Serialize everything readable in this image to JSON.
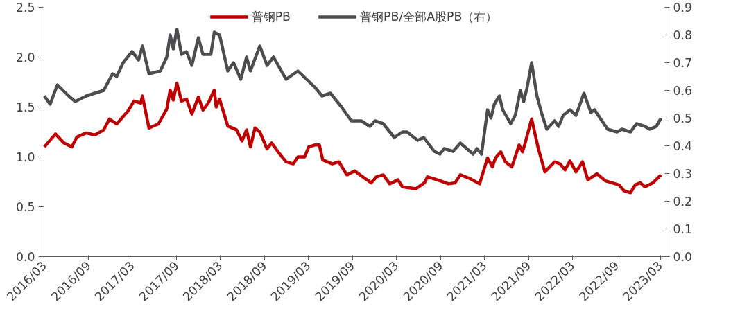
{
  "chart_data": {
    "type": "line",
    "legend": "top",
    "grid": false,
    "line_style": "solid",
    "marker": "none",
    "xlim": [
      "2016-02-20",
      "2023-03-25"
    ],
    "xticks": [
      {
        "value": "2016-03-01",
        "label": "2016/03"
      },
      {
        "value": "2016-09-01",
        "label": "2016/09"
      },
      {
        "value": "2017-03-01",
        "label": "2017/03"
      },
      {
        "value": "2017-09-01",
        "label": "2017/09"
      },
      {
        "value": "2018-03-01",
        "label": "2018/03"
      },
      {
        "value": "2018-09-01",
        "label": "2018/09"
      },
      {
        "value": "2019-03-01",
        "label": "2019/03"
      },
      {
        "value": "2019-09-01",
        "label": "2019/09"
      },
      {
        "value": "2020-03-01",
        "label": "2020/03"
      },
      {
        "value": "2020-09-01",
        "label": "2020/09"
      },
      {
        "value": "2021-03-01",
        "label": "2021/03"
      },
      {
        "value": "2021-09-01",
        "label": "2021/09"
      },
      {
        "value": "2022-03-01",
        "label": "2022/03"
      },
      {
        "value": "2022-09-01",
        "label": "2022/09"
      },
      {
        "value": "2023-03-01",
        "label": "2023/03"
      }
    ],
    "ylim": [
      0,
      2.5
    ],
    "yticks": [
      {
        "value": 0,
        "label": "0.0"
      },
      {
        "value": 0.5,
        "label": "0.5"
      },
      {
        "value": 1,
        "label": "1.0"
      },
      {
        "value": 1.5,
        "label": "1.5"
      },
      {
        "value": 2,
        "label": "2.0"
      },
      {
        "value": 2.5,
        "label": "2.5"
      }
    ],
    "y2lim": [
      0,
      0.9
    ],
    "y2ticks": [
      {
        "value": 0,
        "label": "0.0"
      },
      0.1,
      0.2,
      0.3,
      0.4,
      0.5,
      0.6,
      0.7,
      0.8,
      0.9
    ],
    "series": [
      {
        "name": "普钢PB",
        "color": "#c00000",
        "x": [
          "2016-03-01",
          "2016-04-16",
          "2016-05-21",
          "2016-06-23",
          "2016-07-14",
          "2016-08-22",
          "2016-09-27",
          "2016-11-02",
          "2016-11-26",
          "2016-12-26",
          "2017-02-11",
          "2017-03-08",
          "2017-04-05",
          "2017-04-12",
          "2017-05-09",
          "2017-06-17",
          "2017-07-22",
          "2017-08-05",
          "2017-08-18",
          "2017-09-02",
          "2017-09-21",
          "2017-10-12",
          "2017-11-03",
          "2017-11-30",
          "2017-12-19",
          "2018-01-10",
          "2018-02-04",
          "2018-02-12",
          "2018-02-26",
          "2018-04-01",
          "2018-05-08",
          "2018-05-30",
          "2018-06-18",
          "2018-07-04",
          "2018-07-23",
          "2018-08-12",
          "2018-09-11",
          "2018-09-30",
          "2018-10-27",
          "2018-11-29",
          "2018-12-29",
          "2019-01-17",
          "2019-02-14",
          "2019-03-03",
          "2019-03-30",
          "2019-04-16",
          "2019-04-30",
          "2019-06-09",
          "2019-07-06",
          "2019-08-08",
          "2019-09-10",
          "2019-10-07",
          "2019-11-17",
          "2019-12-09",
          "2020-01-06",
          "2020-02-02",
          "2020-03-07",
          "2020-03-26",
          "2020-05-20",
          "2020-06-25",
          "2020-07-08",
          "2020-08-18",
          "2020-10-03",
          "2020-10-30",
          "2020-11-21",
          "2021-01-02",
          "2021-02-09",
          "2021-03-14",
          "2021-04-03",
          "2021-04-16",
          "2021-05-08",
          "2021-05-27",
          "2021-06-23",
          "2021-07-23",
          "2021-08-06",
          "2021-08-17",
          "2021-09-13",
          "2021-10-10",
          "2021-11-07",
          "2021-12-17",
          "2022-01-09",
          "2022-01-30",
          "2022-02-19",
          "2022-03-16",
          "2022-04-12",
          "2022-05-04",
          "2022-06-11",
          "2022-07-16",
          "2022-09-10",
          "2022-10-01",
          "2022-10-28",
          "2022-11-17",
          "2022-12-08",
          "2022-12-27",
          "2023-01-29",
          "2023-03-04"
        ],
        "values": [
          1.1,
          1.23,
          1.14,
          1.1,
          1.2,
          1.24,
          1.22,
          1.27,
          1.38,
          1.33,
          1.46,
          1.56,
          1.54,
          1.61,
          1.29,
          1.33,
          1.48,
          1.67,
          1.57,
          1.74,
          1.56,
          1.58,
          1.43,
          1.6,
          1.47,
          1.54,
          1.67,
          1.5,
          1.58,
          1.31,
          1.27,
          1.16,
          1.27,
          1.1,
          1.29,
          1.25,
          1.08,
          1.14,
          1.05,
          0.95,
          0.93,
          1.0,
          1.0,
          1.1,
          1.12,
          1.12,
          0.97,
          0.93,
          0.95,
          0.82,
          0.86,
          0.81,
          0.74,
          0.8,
          0.82,
          0.73,
          0.77,
          0.7,
          0.68,
          0.74,
          0.8,
          0.77,
          0.73,
          0.74,
          0.82,
          0.78,
          0.73,
          0.99,
          0.9,
          0.99,
          1.05,
          0.95,
          0.9,
          1.12,
          1.05,
          1.14,
          1.38,
          1.09,
          0.85,
          0.95,
          0.93,
          0.87,
          0.96,
          0.85,
          0.95,
          0.77,
          0.83,
          0.76,
          0.72,
          0.66,
          0.64,
          0.72,
          0.74,
          0.7,
          0.74,
          0.82
        ]
      },
      {
        "name": "普钢PB/全部A股PB（右）",
        "color": "#4d4d4f",
        "axis": "y2",
        "x": [
          "2016-03-01",
          "2016-03-25",
          "2016-04-24",
          "2016-06-10",
          "2016-07-07",
          "2016-08-22",
          "2016-09-27",
          "2016-11-02",
          "2016-12-09",
          "2016-12-26",
          "2017-01-22",
          "2017-02-28",
          "2017-03-27",
          "2017-04-12",
          "2017-05-09",
          "2017-06-25",
          "2017-07-22",
          "2017-08-05",
          "2017-08-18",
          "2017-09-02",
          "2017-09-21",
          "2017-10-12",
          "2017-11-03",
          "2017-11-30",
          "2017-12-19",
          "2018-01-21",
          "2018-02-04",
          "2018-02-26",
          "2018-04-01",
          "2018-04-25",
          "2018-05-25",
          "2018-06-18",
          "2018-07-04",
          "2018-08-12",
          "2018-09-11",
          "2018-10-08",
          "2018-11-29",
          "2019-01-17",
          "2019-02-22",
          "2019-03-30",
          "2019-04-27",
          "2019-06-01",
          "2019-07-17",
          "2019-08-27",
          "2019-10-07",
          "2019-11-12",
          "2019-12-03",
          "2020-01-06",
          "2020-02-21",
          "2020-03-26",
          "2020-04-14",
          "2020-05-28",
          "2020-06-22",
          "2020-08-05",
          "2020-08-29",
          "2020-09-15",
          "2020-10-22",
          "2020-11-21",
          "2021-01-13",
          "2021-01-29",
          "2021-02-17",
          "2021-03-14",
          "2021-03-28",
          "2021-04-11",
          "2021-05-02",
          "2021-05-16",
          "2021-06-18",
          "2021-07-07",
          "2021-07-28",
          "2021-08-11",
          "2021-08-25",
          "2021-09-13",
          "2021-10-05",
          "2021-10-27",
          "2021-11-15",
          "2021-12-17",
          "2022-01-03",
          "2022-01-22",
          "2022-02-19",
          "2022-03-16",
          "2022-04-18",
          "2022-05-17",
          "2022-06-01",
          "2022-07-25",
          "2022-09-02",
          "2022-09-23",
          "2022-10-28",
          "2022-11-22",
          "2022-12-27",
          "2023-01-16",
          "2023-02-12",
          "2023-03-04"
        ],
        "values": [
          0.58,
          0.55,
          0.62,
          0.58,
          0.56,
          0.58,
          0.59,
          0.6,
          0.66,
          0.65,
          0.7,
          0.74,
          0.71,
          0.76,
          0.66,
          0.67,
          0.72,
          0.8,
          0.75,
          0.82,
          0.73,
          0.74,
          0.69,
          0.79,
          0.73,
          0.73,
          0.81,
          0.8,
          0.67,
          0.7,
          0.64,
          0.72,
          0.67,
          0.76,
          0.69,
          0.72,
          0.64,
          0.67,
          0.64,
          0.61,
          0.58,
          0.59,
          0.54,
          0.49,
          0.49,
          0.47,
          0.49,
          0.48,
          0.43,
          0.45,
          0.45,
          0.42,
          0.43,
          0.38,
          0.37,
          0.39,
          0.38,
          0.41,
          0.37,
          0.39,
          0.37,
          0.53,
          0.5,
          0.55,
          0.58,
          0.53,
          0.48,
          0.51,
          0.6,
          0.56,
          0.61,
          0.7,
          0.58,
          0.51,
          0.46,
          0.49,
          0.47,
          0.51,
          0.53,
          0.51,
          0.59,
          0.52,
          0.53,
          0.46,
          0.45,
          0.46,
          0.45,
          0.48,
          0.47,
          0.46,
          0.47,
          0.5
        ]
      }
    ]
  }
}
